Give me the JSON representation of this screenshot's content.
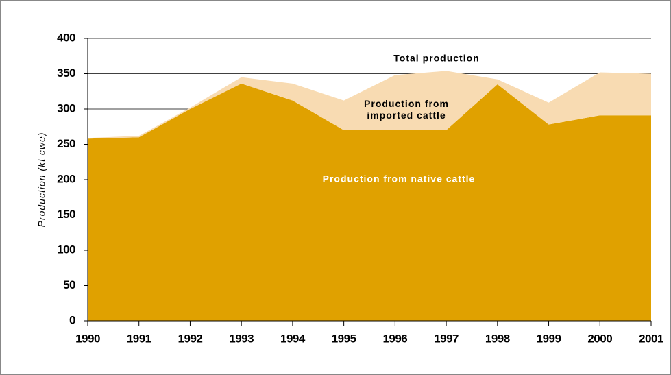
{
  "chart_data": {
    "type": "area",
    "stacked": true,
    "annotations": [
      "Total production"
    ],
    "ylabel": "Production (kt cwe)",
    "categories": [
      "1990",
      "1991",
      "1992",
      "1993",
      "1994",
      "1995",
      "1996",
      "1997",
      "1998",
      "1999",
      "2000",
      "2001"
    ],
    "series": [
      {
        "name": "Production from native cattle",
        "color": "#e0a100",
        "values": [
          258,
          260,
          300,
          336,
          312,
          270,
          270,
          270,
          335,
          278,
          291,
          291
        ]
      },
      {
        "name": "Production from imported cattle",
        "color": "#f8dbb2",
        "values": [
          1,
          2,
          2,
          9,
          24,
          42,
          78,
          84,
          7,
          31,
          61,
          59
        ]
      }
    ],
    "ylim": [
      0,
      400
    ],
    "yticks": [
      0,
      50,
      100,
      150,
      200,
      250,
      300,
      350,
      400
    ],
    "grid": true
  }
}
